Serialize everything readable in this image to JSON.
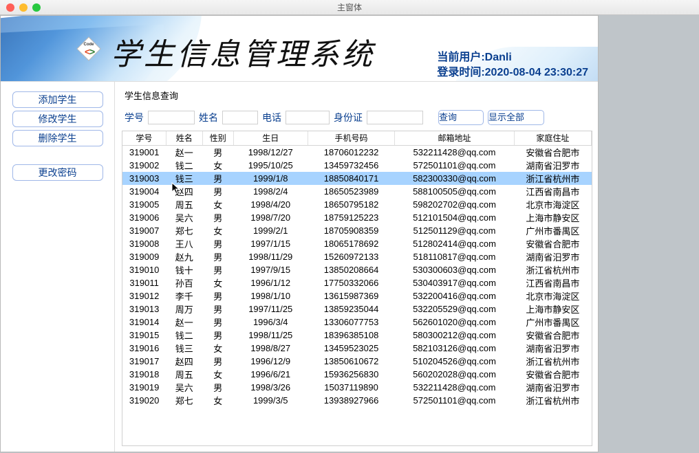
{
  "window": {
    "title": "主窗体"
  },
  "banner": {
    "system_title": "学生信息管理系统",
    "user_label": "当前用户:",
    "user_name": "Danli",
    "login_label": "登录时间:",
    "login_time": "2020-08-04 23:30:27"
  },
  "sidebar": {
    "add": "添加学生",
    "edit": "修改学生",
    "delete": "删除学生",
    "pwd": "更改密码"
  },
  "panel": {
    "title": "学生信息查询",
    "labels": {
      "sno": "学号",
      "name": "姓名",
      "tel": "电话",
      "id": "身份证"
    },
    "inputs": {
      "sno": "",
      "name": "",
      "tel": "",
      "id": ""
    },
    "search_btn": "查询",
    "show_all_btn": "显示全部"
  },
  "table": {
    "selected_row_index": 2,
    "selected_row_bg": "#a7d3ff",
    "columns": [
      "学号",
      "姓名",
      "性别",
      "生日",
      "手机号码",
      "邮箱地址",
      "家庭住址"
    ],
    "rows": [
      [
        "319001",
        "赵一",
        "男",
        "1998/12/27",
        "18706012232",
        "532211428@qq.com",
        "安徽省合肥市"
      ],
      [
        "319002",
        "钱二",
        "女",
        "1995/10/25",
        "13459732456",
        "572501101@qq.com",
        "湖南省汨罗市"
      ],
      [
        "319003",
        "钱三",
        "男",
        "1999/1/8",
        "18850840171",
        "582300330@qq.com",
        "浙江省杭州市"
      ],
      [
        "319004",
        "赵四",
        "男",
        "1998/2/4",
        "18650523989",
        "588100505@qq.com",
        "江西省南昌市"
      ],
      [
        "319005",
        "周五",
        "女",
        "1998/4/20",
        "18650795182",
        "598202702@qq.com",
        "北京市海淀区"
      ],
      [
        "319006",
        "吴六",
        "男",
        "1998/7/20",
        "18759125223",
        "512101504@qq.com",
        "上海市静安区"
      ],
      [
        "319007",
        "郑七",
        "女",
        "1999/2/1",
        "18705908359",
        "512501129@qq.com",
        "广州市番禺区"
      ],
      [
        "319008",
        "王八",
        "男",
        "1997/1/15",
        "18065178692",
        "512802414@qq.com",
        "安徽省合肥市"
      ],
      [
        "319009",
        "赵九",
        "男",
        "1998/11/29",
        "15260972133",
        "518110817@qq.com",
        "湖南省汨罗市"
      ],
      [
        "319010",
        "钱十",
        "男",
        "1997/9/15",
        "13850208664",
        "530300603@qq.com",
        "浙江省杭州市"
      ],
      [
        "319011",
        "孙百",
        "女",
        "1996/1/12",
        "17750332066",
        "530403917@qq.com",
        "江西省南昌市"
      ],
      [
        "319012",
        "李千",
        "男",
        "1998/1/10",
        "13615987369",
        "532200416@qq.com",
        "北京市海淀区"
      ],
      [
        "319013",
        "周万",
        "男",
        "1997/11/25",
        "13859235044",
        "532205529@qq.com",
        "上海市静安区"
      ],
      [
        "319014",
        "赵一",
        "男",
        "1996/3/4",
        "13306077753",
        "562601020@qq.com",
        "广州市番禺区"
      ],
      [
        "319015",
        "钱二",
        "男",
        "1998/11/25",
        "18396385108",
        "580300212@qq.com",
        "安徽省合肥市"
      ],
      [
        "319016",
        "钱三",
        "女",
        "1998/8/27",
        "13459523025",
        "582103126@qq.com",
        "湖南省汨罗市"
      ],
      [
        "319017",
        "赵四",
        "男",
        "1996/12/9",
        "13850610672",
        "510204526@qq.com",
        "浙江省杭州市"
      ],
      [
        "319018",
        "周五",
        "女",
        "1996/6/21",
        "15936256830",
        "560202028@qq.com",
        "安徽省合肥市"
      ],
      [
        "319019",
        "吴六",
        "男",
        "1998/3/26",
        "15037119890",
        "532211428@qq.com",
        "湖南省汨罗市"
      ],
      [
        "319020",
        "郑七",
        "女",
        "1999/3/5",
        "13938927966",
        "572501101@qq.com",
        "浙江省杭州市"
      ]
    ]
  },
  "colors": {
    "accent_text": "#0a3f8f",
    "border": "#cfcfcf",
    "button_border": "#9fb7e8"
  }
}
